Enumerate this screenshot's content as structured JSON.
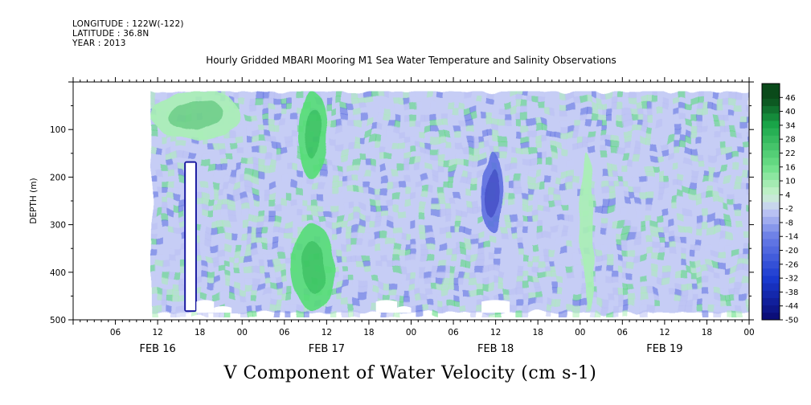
{
  "header": {
    "longitude": "LONGITUDE : 122W(-122)",
    "latitude": "LATITUDE : 36.8N",
    "year": "YEAR : 2013",
    "title": "Hourly Gridded MBARI Mooring M1 Sea Water Temperature and Salinity Observations",
    "variable_title": "V Component of Water Velocity (cm s-1)"
  },
  "colors": {
    "strong_negative": "#1a1aa0",
    "negative": "#5c6fe0",
    "weak_negative": "#b9c0f2",
    "near_zero": "#c6cdf5",
    "weak_positive": "#a9efb5",
    "positive": "#55dd77",
    "strong_positive": "#10a040",
    "missing": "#ffffff"
  },
  "chart_data": {
    "type": "heatmap",
    "title": "Hourly Gridded MBARI Mooring M1 Sea Water Temperature and Salinity Observations",
    "xlabel": "",
    "ylabel": "DEPTH (m)",
    "colorbar_label": "V Component of Water Velocity (cm s-1)",
    "y_axis": {
      "range": [
        500,
        0
      ],
      "inverted": true,
      "ticks": [
        100,
        200,
        300,
        400,
        500
      ],
      "tick_labels": [
        "100",
        "200",
        "300",
        "400",
        "500"
      ]
    },
    "x_axis": {
      "hour_ticks": [
        "06",
        "12",
        "18",
        "00",
        "06",
        "12",
        "18",
        "00",
        "06",
        "12",
        "18",
        "00",
        "06",
        "12",
        "18",
        "00"
      ],
      "day_labels": [
        "FEB 16",
        "FEB 17",
        "FEB 18",
        "FEB 19"
      ],
      "range_hours": [
        "2013-02-16 00:00",
        "2013-02-19 24:00"
      ]
    },
    "colorbar": {
      "levels": [
        -50,
        -44,
        -38,
        -32,
        -26,
        -20,
        -14,
        -8,
        -2,
        4,
        10,
        16,
        22,
        28,
        34,
        40,
        46
      ],
      "labels": [
        "-50",
        "-44",
        "-38",
        "-32",
        "-26",
        "-20",
        "-14",
        "-8",
        "-2",
        "4",
        "10",
        "16",
        "22",
        "28",
        "34",
        "40",
        "46"
      ]
    },
    "data_extent": {
      "start": "2013-02-16 11:00",
      "end": "2013-02-19 24:00",
      "depth_top": 20,
      "depth_bottom": 485
    },
    "features": [
      {
        "label": "positive near-surface band",
        "time": "2013-02-16 11:00 to 2013-02-17 00:00",
        "depth": "20-120",
        "value": 15
      },
      {
        "label": "positive column",
        "time": "2013-02-17 08:00 to 2013-02-17 12:00",
        "depth": "20-200",
        "value": 18
      },
      {
        "label": "positive deep plume",
        "time": "2013-02-17 07:00 to 2013-02-17 13:00",
        "depth": "300-480",
        "value": 16
      },
      {
        "label": "negative core",
        "time": "2013-02-18 10:00 to 2013-02-18 13:00",
        "depth": "150-320",
        "value": -18
      },
      {
        "label": "positive column",
        "time": "2013-02-19 00:00 to 2013-02-19 02:00",
        "depth": "150-480",
        "value": 12
      },
      {
        "label": "missing data gap",
        "time": "2013-02-16 16:00 to 2013-02-16 17:00",
        "depth": "170-480",
        "value": null
      }
    ]
  }
}
